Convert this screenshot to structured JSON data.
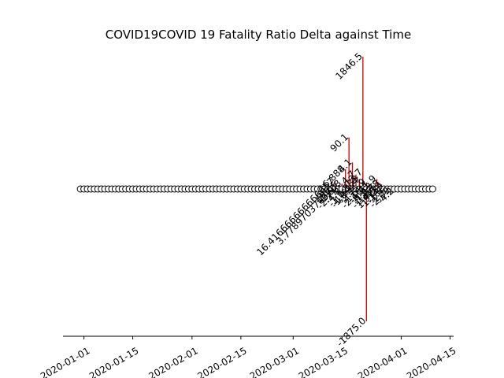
{
  "chart_data": {
    "type": "stem",
    "title": "COVID19COVID 19 Fatality Ratio Delta against Time",
    "xlabel": "",
    "ylabel": "",
    "x_range": [
      "2019-12-26",
      "2020-04-16"
    ],
    "y_range": [
      -20,
      20
    ],
    "baseline_marker": "open-circle",
    "marker_dates_start": "2019-12-31",
    "marker_dates_end": "2020-04-10",
    "x_tick_labels": [
      "2020-01-01",
      "2020-01-15",
      "2020-02-01",
      "2020-02-15",
      "2020-03-01",
      "2020-03-15",
      "2020-04-01",
      "2020-04-15"
    ],
    "line_color": "#cc0000",
    "stems": [
      {
        "x": "2020-03-13",
        "y": 1.1,
        "label": "16.416666666666657"
      },
      {
        "x": "2020-03-14",
        "y": 0.6,
        "label": "16.05"
      },
      {
        "x": "2020-03-15",
        "y": 0.8,
        "label": "3.7789703703703"
      },
      {
        "x": "2020-03-16",
        "y": 3.0,
        "label": "16.888"
      },
      {
        "x": "2020-03-17",
        "y": 7.8,
        "label": "90.1"
      },
      {
        "x": "2020-03-18",
        "y": 4.0,
        "label": "4.1"
      },
      {
        "x": "2020-03-19",
        "y": 2.2,
        "label": "4.7"
      },
      {
        "x": "2020-03-20",
        "y": 1.5,
        "label": "1.583"
      },
      {
        "x": "2020-03-21",
        "y": 2.5,
        "label": "3.7"
      },
      {
        "x": "2020-03-22",
        "y": 1.0,
        "label": "5.9"
      },
      {
        "x": "2020-03-23",
        "y": 0.6,
        "label": "1.41"
      },
      {
        "x": "2020-03-24",
        "y": 0.4,
        "label": "1.12"
      },
      {
        "x": "2020-03-25",
        "y": 1.5,
        "label": "1.9"
      },
      {
        "x": "2020-03-26",
        "y": 0.8,
        "label": "1.78"
      },
      {
        "x": "2020-03-27",
        "y": 0.5,
        "label": "1.9134"
      },
      {
        "x": "2020-03-20",
        "y": 1.2,
        "label": "1.4"
      },
      {
        "x": "2020-03-21",
        "y": 20.0,
        "label": "1846.5"
      },
      {
        "x": "2020-03-22",
        "y": -20.0,
        "label": "-1875.0"
      },
      {
        "x": "2020-03-12",
        "y": -0.3,
        "label": "-2.6"
      },
      {
        "x": "2020-03-13",
        "y": -0.4,
        "label": "-2.6"
      },
      {
        "x": "2020-03-14",
        "y": -0.5,
        "label": "-2.77"
      },
      {
        "x": "2020-03-15",
        "y": -0.4,
        "label": "-4.8"
      },
      {
        "x": "2020-03-16",
        "y": -0.8,
        "label": "-1.0"
      },
      {
        "x": "2020-03-17",
        "y": -0.6,
        "label": "-1.6"
      },
      {
        "x": "2020-03-18",
        "y": -0.3,
        "label": "-1.09"
      },
      {
        "x": "2020-03-19",
        "y": -0.4,
        "label": "-2.7"
      },
      {
        "x": "2020-03-20",
        "y": -0.5,
        "label": "-1.5"
      },
      {
        "x": "2020-03-21",
        "y": -0.4,
        "label": "-2.16"
      },
      {
        "x": "2020-03-22",
        "y": -0.3,
        "label": "-6.7"
      },
      {
        "x": "2020-03-23",
        "y": -0.5,
        "label": "-1.2"
      },
      {
        "x": "2020-03-24",
        "y": -0.4,
        "label": "-1.25"
      },
      {
        "x": "2020-03-25",
        "y": -0.3,
        "label": "-4.5"
      },
      {
        "x": "2020-03-26",
        "y": -0.5,
        "label": "-1.14"
      },
      {
        "x": "2020-03-27",
        "y": -0.3,
        "label": "-1.3"
      },
      {
        "x": "2020-03-28",
        "y": -0.4,
        "label": "-2.5"
      },
      {
        "x": "2020-03-29",
        "y": -0.3,
        "label": "-2.02"
      },
      {
        "x": "2020-03-30",
        "y": -0.4,
        "label": "-4.2"
      }
    ]
  }
}
